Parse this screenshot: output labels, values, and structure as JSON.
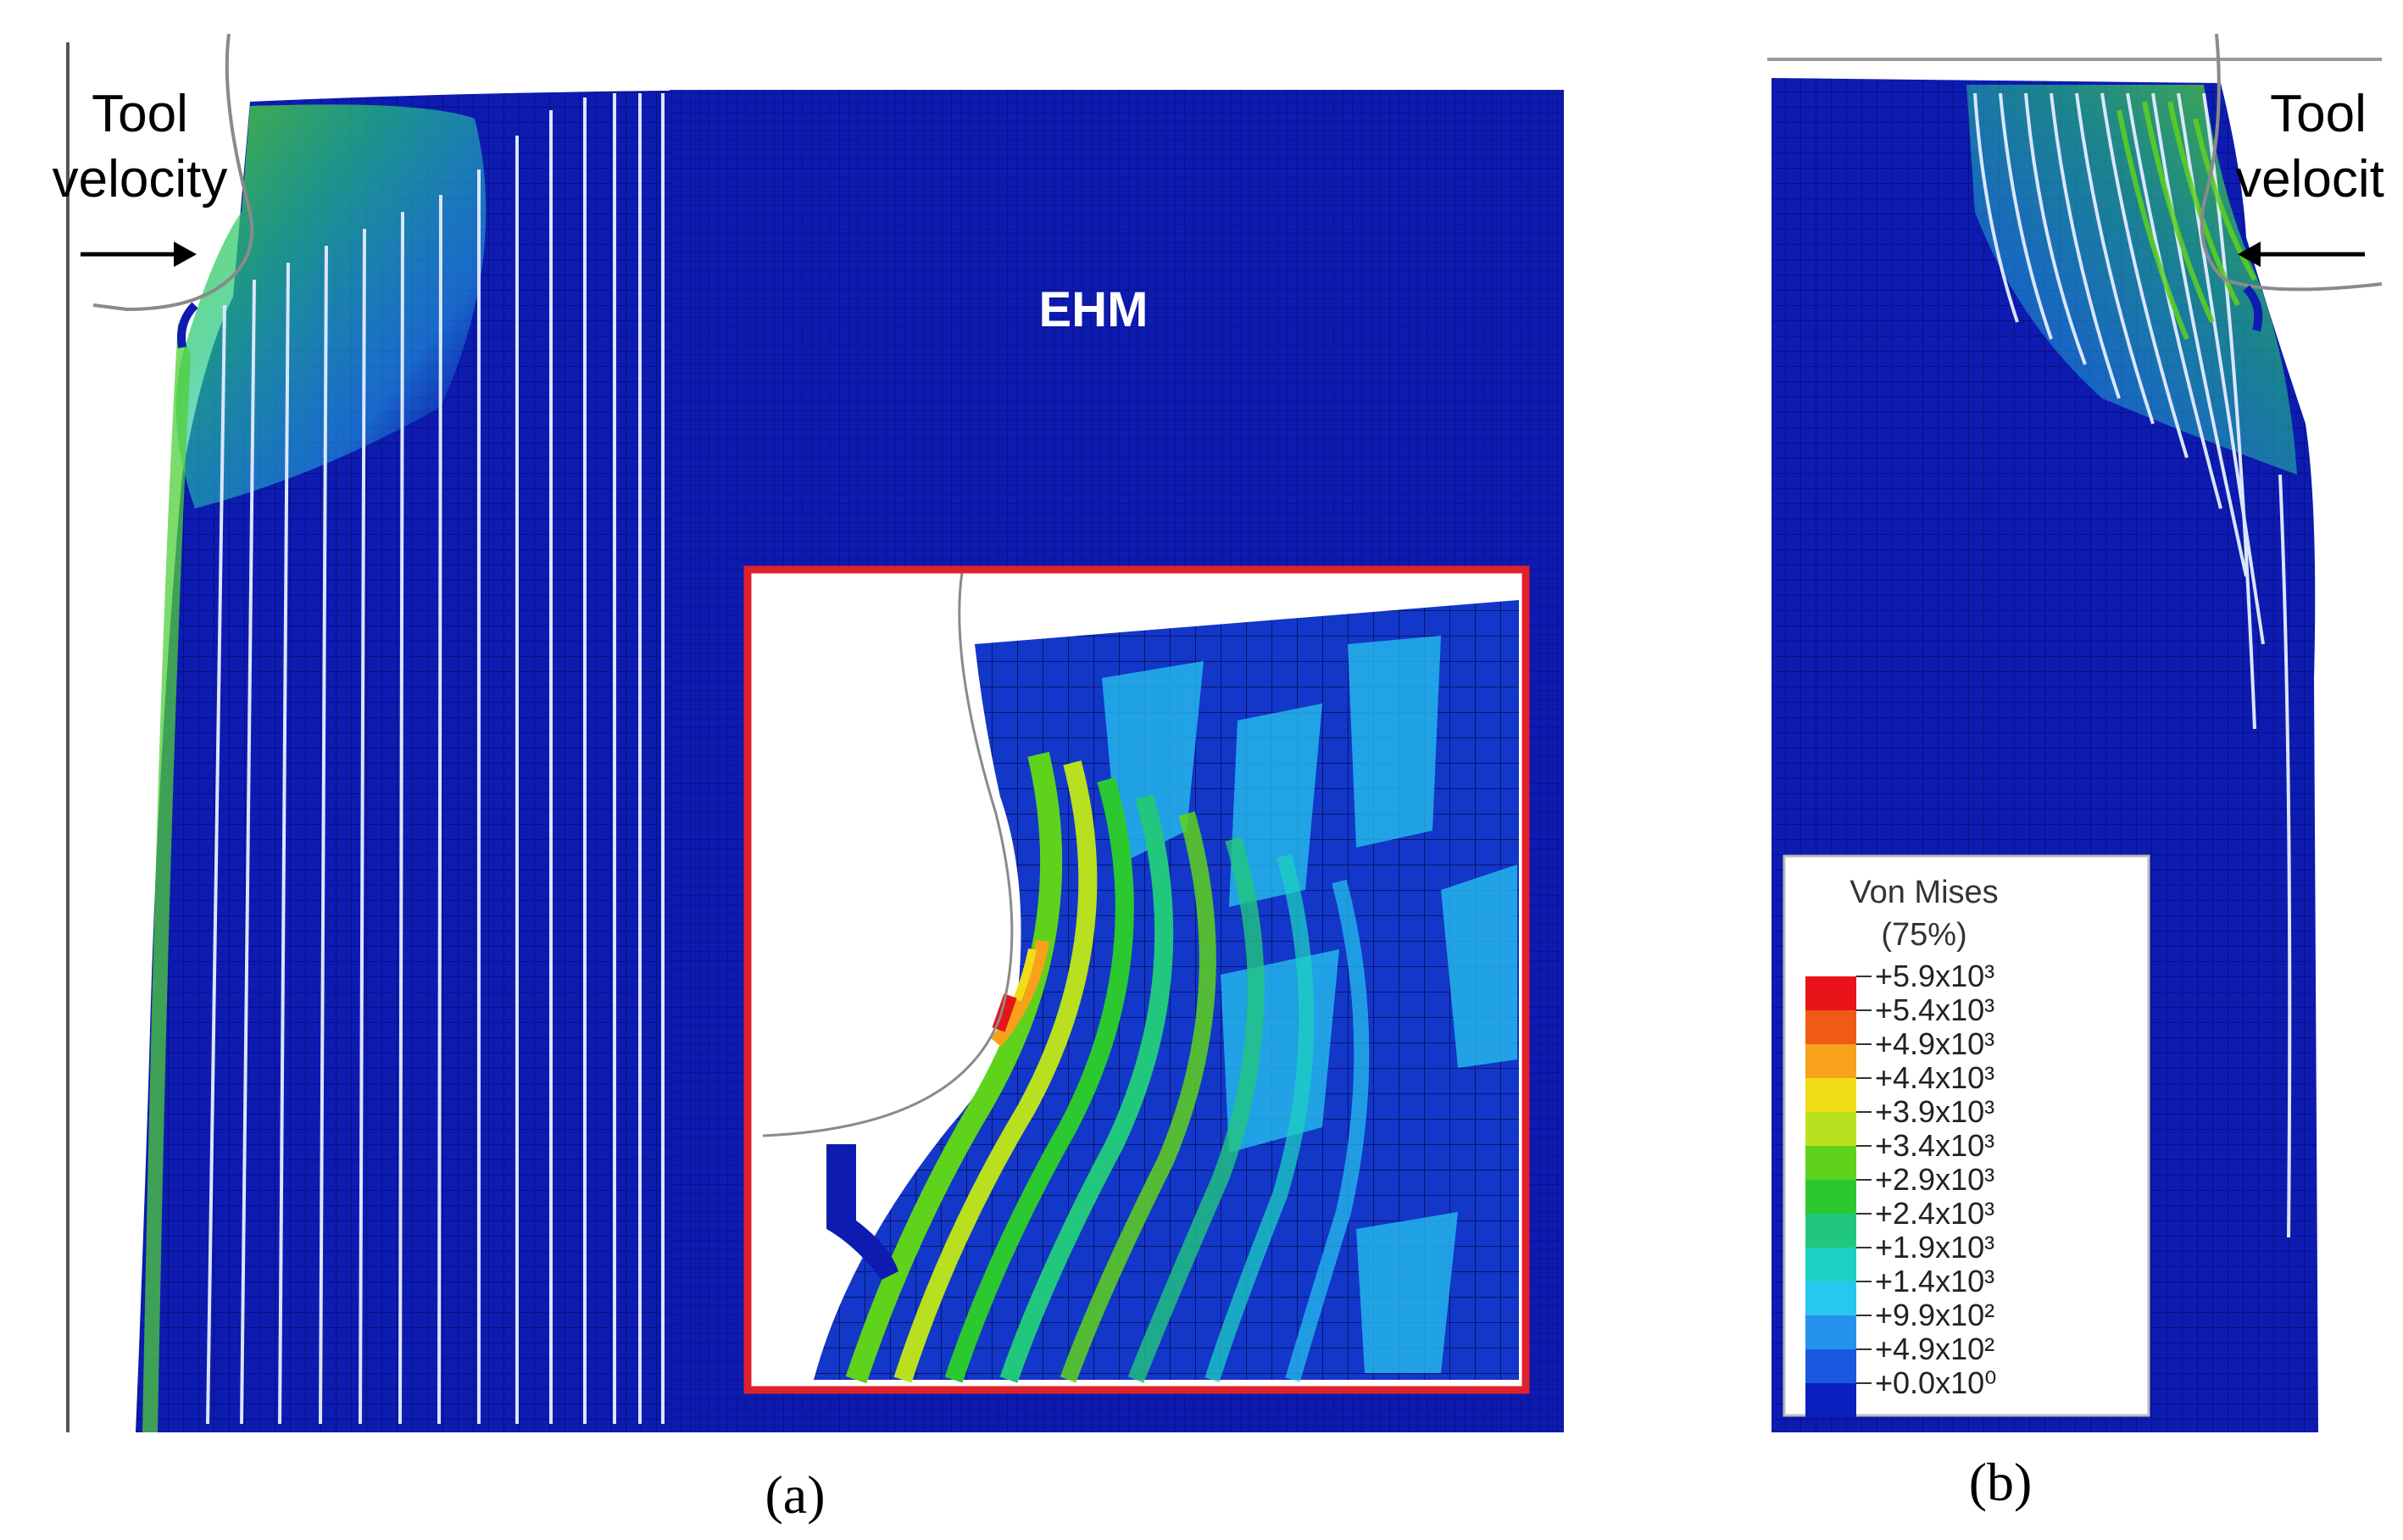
{
  "panel_a": {
    "tool_label_line1": "Tool",
    "tool_label_line2": "velocity",
    "region_label": "EHM",
    "caption": "(a)"
  },
  "panel_b": {
    "tool_label_line1": "Tool",
    "tool_label_line2": "velocit",
    "caption": "(b)",
    "legend": {
      "title_line1": "Von Mises",
      "title_line2": "(75%)",
      "levels": [
        {
          "label": "+5.9x10³",
          "color": "#e8141a"
        },
        {
          "label": "+5.4x10³",
          "color": "#f05a14"
        },
        {
          "label": "+4.9x10³",
          "color": "#f7a21a"
        },
        {
          "label": "+4.4x10³",
          "color": "#f2dc16"
        },
        {
          "label": "+3.9x10³",
          "color": "#b8e01e"
        },
        {
          "label": "+3.4x10³",
          "color": "#5fd21c"
        },
        {
          "label": "+2.9x10³",
          "color": "#2cc82f"
        },
        {
          "label": "+2.4x10³",
          "color": "#22c77e"
        },
        {
          "label": "+1.9x10³",
          "color": "#1cd0c2"
        },
        {
          "label": "+1.4x10³",
          "color": "#27c7f0"
        },
        {
          "label": "+9.9x10²",
          "color": "#2592ee"
        },
        {
          "label": "+4.9x10²",
          "color": "#1a58e0"
        },
        {
          "label": "+0.0x10⁰",
          "color": "#0b1fbe"
        }
      ]
    }
  },
  "colors": {
    "mesh_base": "#0e1bb0",
    "mesh_line": "#061088",
    "inset_frame": "#e0202a",
    "tool_outline": "#8a8a8a",
    "arrow": "#000000"
  }
}
